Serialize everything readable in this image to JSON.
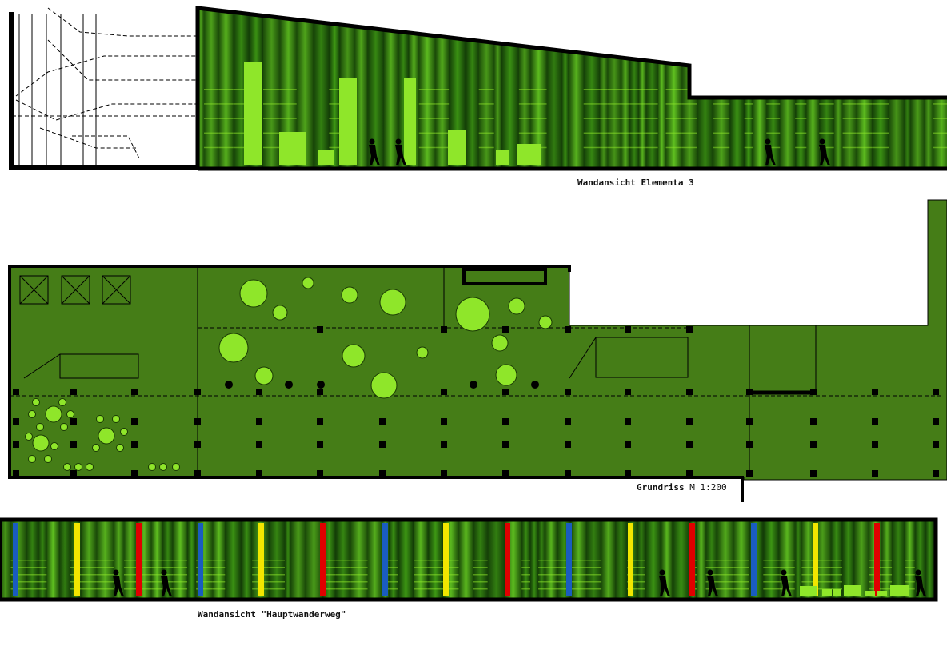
{
  "drawings": [
    {
      "label": "Wandansicht Elementa 3"
    },
    {
      "label": "Grundriss",
      "scale": "M 1:200"
    },
    {
      "label": "Wandansicht \"Hauptwanderweg\""
    }
  ]
}
